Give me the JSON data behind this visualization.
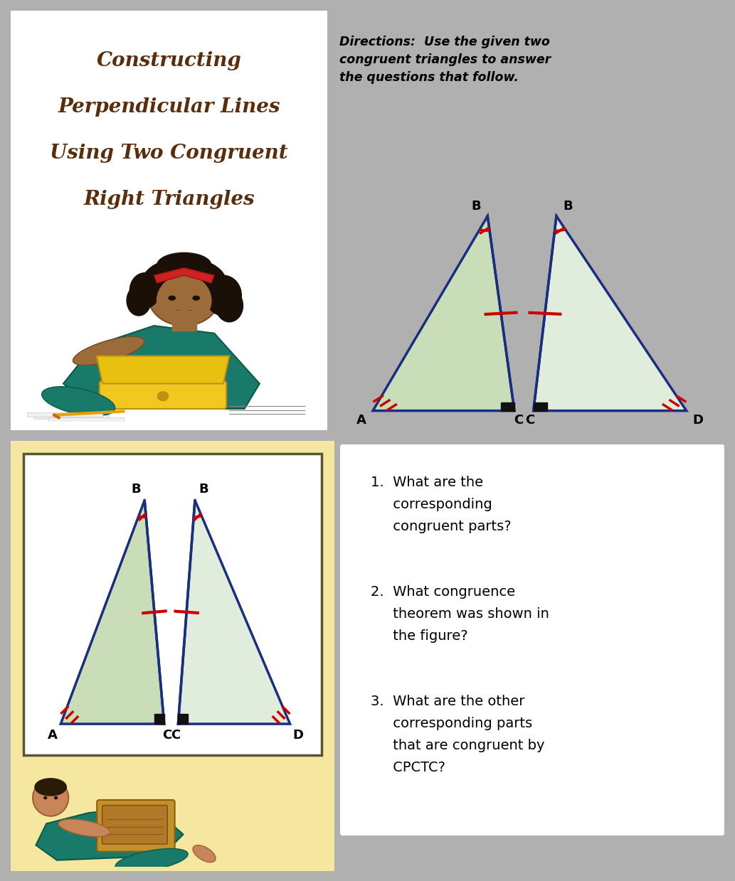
{
  "bg_color": "#b0b0b0",
  "top_left_bg": "#ffffff",
  "top_right_bg": "#f5e6a0",
  "bottom_bg": "#f5e6a0",
  "bottom_right_bg": "#ffffff",
  "title_lines": [
    "Constructing",
    "Perpendicular Lines",
    "Using Two Congruent",
    "Right Triangles"
  ],
  "title_color": "#5a2d0c",
  "directions_text": "Directions:  Use the given two\ncongruent triangles to answer\nthe questions that follow.",
  "q1": "1.  What are the\n     corresponding\n     congruent parts?",
  "q2": "2.  What congruence\n     theorem was shown in\n     the figure?",
  "q3": "3.  What are the other\n     corresponding parts\n     that are congruent by\n     CPCTC?",
  "tri_fill_left": "#c8ddb8",
  "tri_fill_right": "#e0ecdc",
  "tri_edge": "#1a2e80",
  "tick_red": "#cc0000",
  "sq_black": "#111111",
  "lbl_fontsize": 13,
  "lbl_color": "#000000"
}
